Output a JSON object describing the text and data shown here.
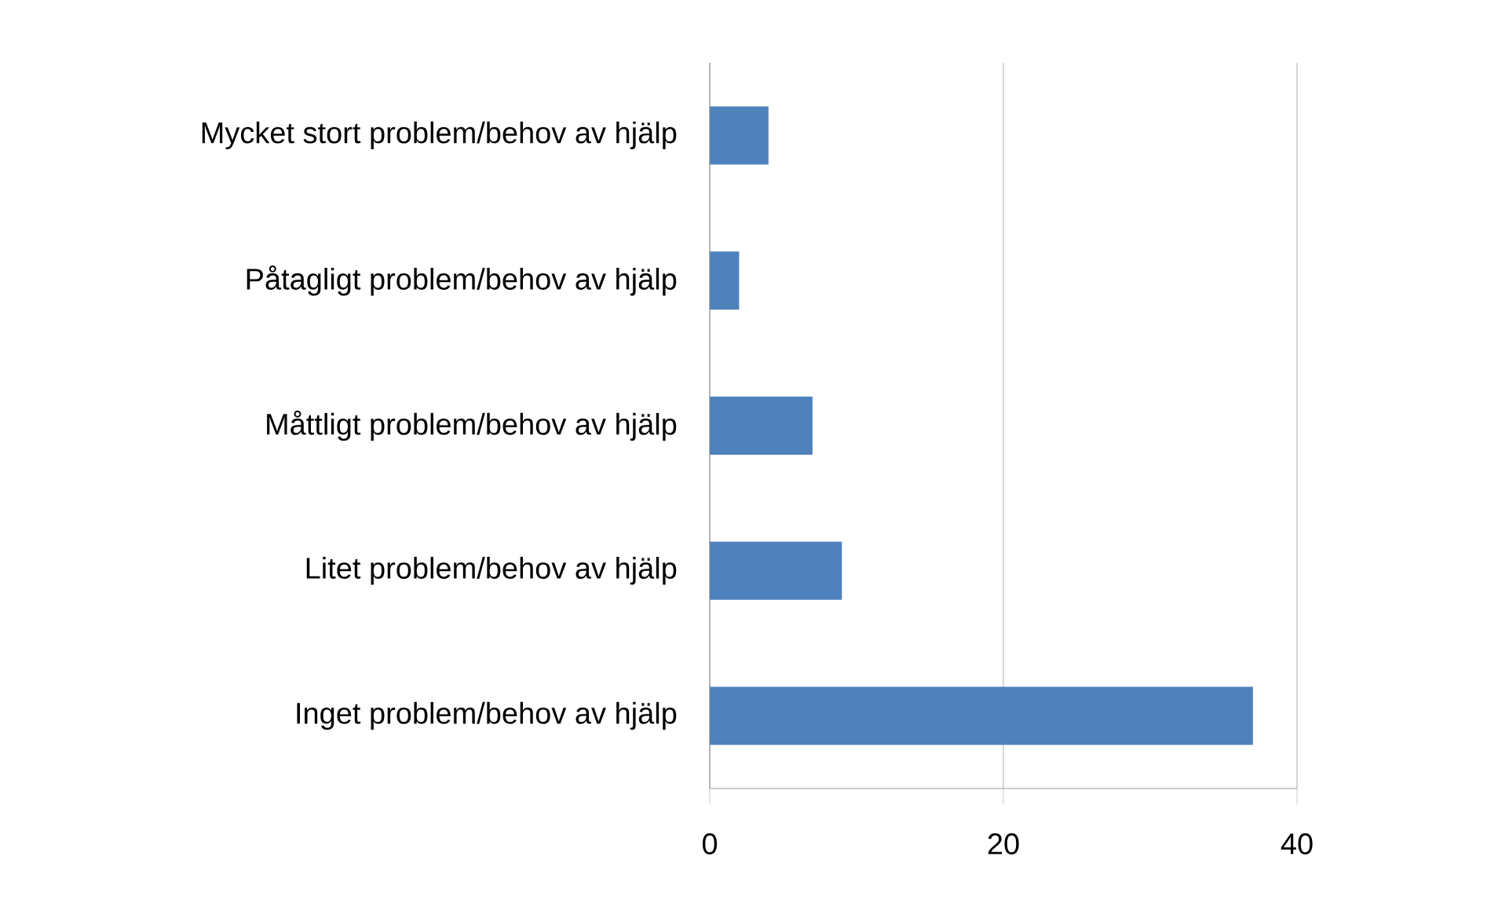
{
  "chart_data": {
    "type": "bar",
    "orientation": "horizontal",
    "categories": [
      "Mycket stort problem/behov av hjälp",
      "Påtagligt problem/behov av hjälp",
      "Måttligt problem/behov av hjälp",
      "Litet problem/behov av hjälp",
      "Inget problem/behov av hjälp"
    ],
    "values": [
      4,
      2,
      7,
      9,
      37
    ],
    "color": "#4f81bd",
    "xlim": [
      0,
      40
    ],
    "xticks": [
      0,
      20,
      40
    ],
    "grid": "x"
  }
}
